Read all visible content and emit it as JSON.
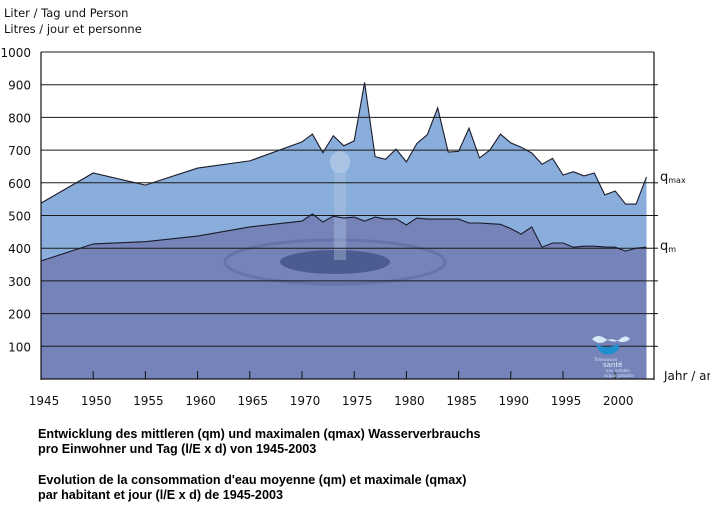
{
  "chart_data": {
    "type": "area",
    "ylabel_de": "Liter / Tag und Person",
    "ylabel_fr": "Litres / jour et personne",
    "xlabel": "Jahr / an",
    "title_de_line1": "Entwicklung des mittleren (qm) und maximalen (qmax) Wasserverbrauchs",
    "title_de_line2": "pro Einwohner und Tag (l/E x d) von 1945-2003",
    "title_fr_line1": "Evolution de la consommation d'eau moyenne  (qm) et maximale (qmax)",
    "title_fr_line2": "par habitant et jour (l/E x d) de 1945-2003",
    "xlim": [
      1945,
      2003.7
    ],
    "ylim": [
      0,
      1000
    ],
    "yticks": [
      100,
      200,
      300,
      400,
      500,
      600,
      700,
      800,
      900,
      1000
    ],
    "xticks": [
      1945,
      1950,
      1955,
      1960,
      1965,
      1970,
      1975,
      1980,
      1985,
      1990,
      1995,
      2000
    ],
    "grid": true,
    "series": [
      {
        "name": "q",
        "subscript": "max",
        "color": "#8aaedb",
        "x": [
          1945,
          1950,
          1955,
          1960,
          1965,
          1970,
          1971,
          1972,
          1973,
          1974,
          1975,
          1976,
          1977,
          1978,
          1979,
          1980,
          1981,
          1982,
          1983,
          1984,
          1985,
          1986,
          1987,
          1988,
          1989,
          1990,
          1991,
          1992,
          1993,
          1994,
          1995,
          1996,
          1997,
          1998,
          1999,
          2000,
          2001,
          2002,
          2003
        ],
        "values": [
          538,
          630,
          593,
          645,
          667,
          725,
          749,
          692,
          744,
          713,
          728,
          907,
          680,
          672,
          703,
          664,
          720,
          747,
          829,
          694,
          696,
          767,
          676,
          700,
          749,
          722,
          709,
          691,
          657,
          675,
          624,
          634,
          621,
          630,
          563,
          575,
          535,
          535,
          618
        ]
      },
      {
        "name": "q",
        "subscript": "m",
        "color": "#7683b8",
        "x": [
          1945,
          1950,
          1955,
          1960,
          1965,
          1970,
          1971,
          1972,
          1973,
          1974,
          1975,
          1976,
          1977,
          1978,
          1979,
          1980,
          1981,
          1982,
          1983,
          1984,
          1985,
          1986,
          1987,
          1988,
          1989,
          1990,
          1991,
          1992,
          1993,
          1994,
          1995,
          1996,
          1997,
          1998,
          1999,
          2000,
          2001,
          2002,
          2003
        ],
        "values": [
          361,
          413,
          420,
          437,
          465,
          483,
          505,
          480,
          498,
          492,
          495,
          483,
          495,
          489,
          490,
          471,
          492,
          489,
          489,
          489,
          489,
          477,
          477,
          475,
          473,
          460,
          443,
          465,
          403,
          416,
          416,
          403,
          406,
          406,
          404,
          403,
          391,
          400,
          403
        ]
      }
    ]
  },
  "logo": {
    "text": [
      "Trinkwasser",
      "santé",
      "eau potable",
      "acqua potabile"
    ],
    "colors": [
      "#d8e8f6",
      "#1f8fd0"
    ]
  }
}
